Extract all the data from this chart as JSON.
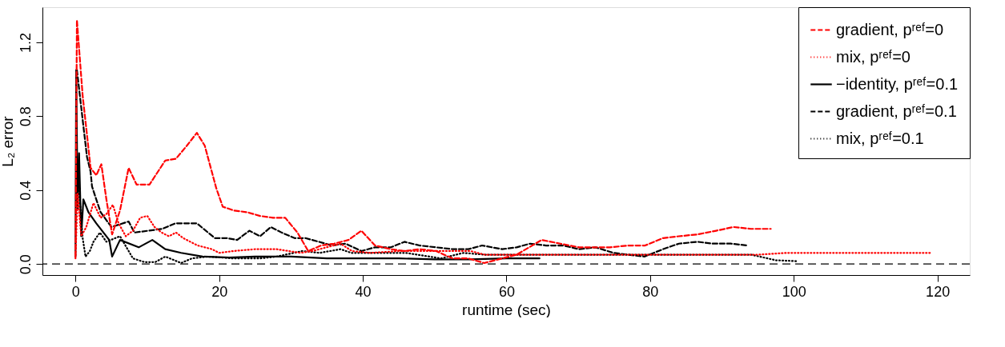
{
  "chart_data": {
    "type": "line",
    "xlabel": "runtime (sec)",
    "ylabel": "L₂ error",
    "xlim": [
      -4.6,
      124.5
    ],
    "ylim": [
      -0.06,
      1.39
    ],
    "xticks": [
      0,
      20,
      40,
      60,
      80,
      100,
      120
    ],
    "yticks": [
      {
        "value": 0,
        "label": "0.0"
      },
      {
        "value": 0.4,
        "label": "0.4"
      },
      {
        "value": 0.8,
        "label": "0.8"
      },
      {
        "value": 1.2,
        "label": "1.2"
      }
    ],
    "grid": false,
    "legend": "top right",
    "marker": "none",
    "ref_lines": [
      {
        "axis": "y",
        "value": 0,
        "label": null,
        "color": "#000000",
        "line_style": "dashed"
      }
    ],
    "series": [
      {
        "name": "gradient, pʳᵉᶠ=0",
        "color": "#ff0000",
        "line_style": "dashed",
        "x": [
          0,
          0.2,
          1.0,
          1.6,
          2.1,
          2.9,
          3.6,
          4.3,
          5.1,
          6.2,
          7.4,
          8.5,
          10.3,
          12.5,
          14,
          15.5,
          16.9,
          18,
          19.6,
          20.5,
          22,
          23.9,
          25.7,
          27.5,
          29.2,
          30.9,
          32.4,
          34.2,
          36,
          38,
          39.8,
          41.7,
          43.9,
          45.8,
          47.9,
          50.2,
          52.5,
          54.7,
          56.9,
          61.4,
          64.9,
          67.5,
          70.1,
          74.4,
          77,
          79.3,
          81.8,
          84,
          86.6,
          89.2,
          91.6,
          94,
          96.8
        ],
        "values": [
          0.04,
          1.32,
          0.91,
          0.7,
          0.52,
          0.48,
          0.54,
          0.35,
          0.16,
          0.29,
          0.52,
          0.43,
          0.43,
          0.56,
          0.57,
          0.64,
          0.71,
          0.64,
          0.41,
          0.31,
          0.29,
          0.28,
          0.26,
          0.25,
          0.25,
          0.17,
          0.07,
          0.1,
          0.11,
          0.13,
          0.18,
          0.1,
          0.08,
          0.07,
          0.08,
          0.07,
          0.03,
          0.03,
          0.005,
          0.05,
          0.13,
          0.11,
          0.09,
          0.09,
          0.1,
          0.1,
          0.14,
          0.15,
          0.16,
          0.18,
          0.2,
          0.19,
          0.19
        ]
      },
      {
        "name": "mix, pʳᵉᶠ=0",
        "color": "#ff0000",
        "line_style": "dotted",
        "x": [
          0,
          0.3,
          0.8,
          1.5,
          2.5,
          3.5,
          4.3,
          5.2,
          6,
          7,
          8,
          9,
          10,
          11,
          12,
          13,
          14,
          15,
          16,
          17,
          18,
          19,
          20,
          22,
          25,
          28,
          31.3,
          33,
          36.9,
          38.5,
          41,
          45,
          48,
          51,
          55,
          57,
          65,
          75,
          85,
          95,
          99,
          105,
          112,
          119.2
        ],
        "values": [
          0.03,
          0.38,
          0.15,
          0.2,
          0.33,
          0.25,
          0.27,
          0.32,
          0.22,
          0.15,
          0.18,
          0.25,
          0.26,
          0.2,
          0.17,
          0.15,
          0.17,
          0.14,
          0.12,
          0.1,
          0.09,
          0.08,
          0.06,
          0.07,
          0.08,
          0.08,
          0.06,
          0.07,
          0.11,
          0.07,
          0.06,
          0.07,
          0.07,
          0.07,
          0.07,
          0.05,
          0.05,
          0.05,
          0.05,
          0.05,
          0.06,
          0.06,
          0.06,
          0.06
        ]
      },
      {
        "name": "−identity, pʳᵉᶠ=0.1",
        "color": "#000000",
        "line_style": "solid",
        "x": [
          0,
          0.1,
          0.3,
          0.5,
          0.8,
          1.1,
          1.8,
          2.9,
          4.7,
          5.1,
          6.2,
          8.8,
          10.7,
          12.5,
          14.7,
          17.7,
          21.4,
          25,
          30,
          35,
          40,
          45,
          50,
          55,
          60,
          64.6
        ],
        "values": [
          0.04,
          1.05,
          0.3,
          0.6,
          0.15,
          0.35,
          0.28,
          0.22,
          0.13,
          0.04,
          0.13,
          0.09,
          0.13,
          0.08,
          0.06,
          0.04,
          0.035,
          0.04,
          0.04,
          0.03,
          0.03,
          0.03,
          0.025,
          0.025,
          0.03,
          0.03
        ]
      },
      {
        "name": "gradient, pʳᵉᶠ=0.1",
        "color": "#000000",
        "line_style": "dashed",
        "x": [
          0.2,
          1.0,
          1.6,
          2.1,
          2.3,
          2.8,
          3.5,
          5,
          7.4,
          8.2,
          12.1,
          13.9,
          16.9,
          19.4,
          21,
          22.5,
          24.2,
          25.7,
          27.2,
          28.7,
          30.5,
          32,
          33.9,
          35.7,
          37.6,
          39.8,
          41.7,
          43.9,
          45.8,
          47.9,
          50.2,
          52.5,
          54.7,
          56.6,
          59.4,
          61.4,
          63.3,
          65.5,
          67.9,
          70.1,
          72.4,
          74.9,
          77,
          79.2,
          81.8,
          84,
          86.6,
          88.7,
          91.3,
          93.6
        ],
        "values": [
          1.05,
          0.78,
          0.58,
          0.5,
          0.42,
          0.36,
          0.28,
          0.2,
          0.23,
          0.17,
          0.19,
          0.22,
          0.22,
          0.14,
          0.14,
          0.13,
          0.18,
          0.15,
          0.2,
          0.17,
          0.14,
          0.14,
          0.12,
          0.1,
          0.11,
          0.07,
          0.09,
          0.09,
          0.12,
          0.1,
          0.09,
          0.08,
          0.08,
          0.1,
          0.08,
          0.09,
          0.11,
          0.1,
          0.1,
          0.08,
          0.09,
          0.06,
          0.05,
          0.04,
          0.08,
          0.11,
          0.12,
          0.11,
          0.11,
          0.1
        ]
      },
      {
        "name": "mix, pʳᵉᶠ=0.1",
        "color": "#000000",
        "line_style": "dotted",
        "x": [
          0.4,
          1,
          1.4,
          2,
          2.5,
          3.4,
          4.3,
          6.2,
          8,
          9.6,
          11.1,
          12.5,
          14.7,
          16.2,
          18.4,
          22,
          25.7,
          28,
          31.6,
          34,
          36.9,
          38.4,
          42,
          46,
          50.9,
          54,
          57,
          65,
          75,
          85,
          94.1,
          97.5,
          100.5
        ],
        "values": [
          0.45,
          0.14,
          0.04,
          0.07,
          0.12,
          0.17,
          0.12,
          0.15,
          0.03,
          0.01,
          0.01,
          0.04,
          0.005,
          0.03,
          0.04,
          0.03,
          0.03,
          0.04,
          0.07,
          0.06,
          0.08,
          0.06,
          0.06,
          0.06,
          0.03,
          0.06,
          0.05,
          0.05,
          0.05,
          0.05,
          0.05,
          0.02,
          0.015
        ]
      }
    ]
  }
}
